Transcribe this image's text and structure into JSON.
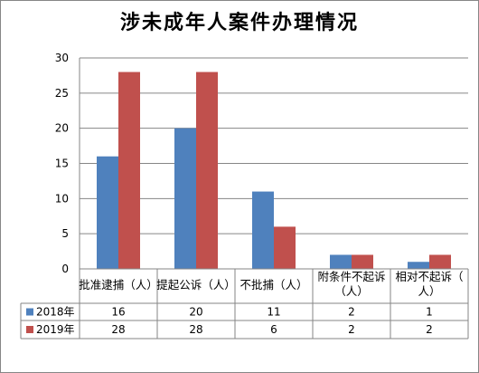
{
  "chart_data": {
    "type": "bar",
    "title": "涉未成年人案件办理情况",
    "categories": [
      [
        "批准逮捕（人）"
      ],
      [
        "提起公诉（人）"
      ],
      [
        "不批捕（人）"
      ],
      [
        "附条件不起诉",
        "（人）"
      ],
      [
        "相对不起诉（",
        "人）"
      ]
    ],
    "series": [
      {
        "name": "2018年",
        "values": [
          16,
          20,
          11,
          2,
          1
        ],
        "color": "#4F81BD"
      },
      {
        "name": "2019年",
        "values": [
          28,
          28,
          6,
          2,
          2
        ],
        "color": "#C0504D"
      }
    ],
    "ylim": [
      0,
      30
    ],
    "yticks": [
      0,
      5,
      10,
      15,
      20,
      25,
      30
    ],
    "grid": true,
    "legend": "data-table"
  }
}
